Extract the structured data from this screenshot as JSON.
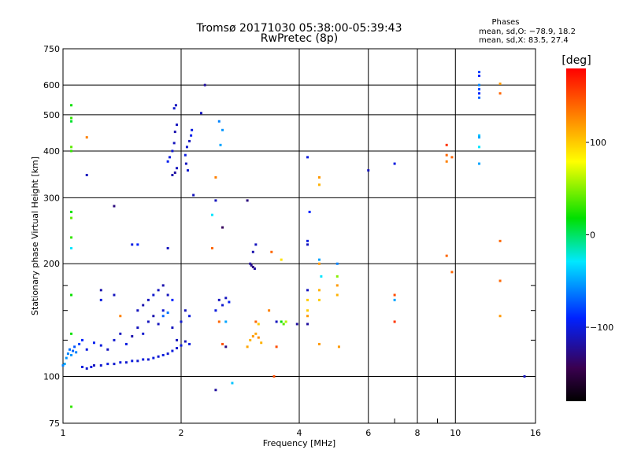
{
  "chart_data": {
    "type": "scatter",
    "title": "Tromsø 20171030 05:38:00-05:39:43",
    "subtitle": "RwPretec (8p)",
    "xlabel": "Frequency [MHz]",
    "ylabel": "Stationary phase Virtual Height [km]",
    "xscale": "log",
    "yscale": "log",
    "xlim": [
      1,
      16
    ],
    "ylim": [
      75,
      750
    ],
    "xticks": [
      1,
      2,
      4,
      6,
      8,
      10,
      16
    ],
    "xtick_labels": [
      "1",
      "2",
      "4",
      "6",
      "8",
      "10",
      "16"
    ],
    "xminor": [
      7,
      9
    ],
    "yticks": [
      75,
      100,
      200,
      300,
      400,
      500,
      600,
      750
    ],
    "ytick_labels": [
      "75",
      "100",
      "200",
      "300",
      "400",
      "500",
      "600",
      "750"
    ],
    "yminor": [
      125,
      150,
      175
    ],
    "grid": true,
    "stats": {
      "heading": "Phases",
      "line1": "mean, sd,O: −78.9, 18.2",
      "line2": "mean, sd,X:  83.5, 27.4"
    },
    "colorbar": {
      "label": "[deg]",
      "range": [
        -180,
        180
      ],
      "ticks": [
        100,
        0,
        -100
      ],
      "tick_labels": [
        "100",
        "0",
        "−100"
      ]
    },
    "series": [
      {
        "points": [
          {
            "x": 1.0,
            "y": 107,
            "p": -60
          },
          {
            "x": 1.01,
            "y": 108,
            "p": -50
          },
          {
            "x": 1.02,
            "y": 112,
            "p": -55
          },
          {
            "x": 1.03,
            "y": 115,
            "p": -60
          },
          {
            "x": 1.04,
            "y": 118,
            "p": -65
          },
          {
            "x": 1.05,
            "y": 114,
            "p": -55
          },
          {
            "x": 1.06,
            "y": 117,
            "p": -70
          },
          {
            "x": 1.07,
            "y": 120,
            "p": -75
          },
          {
            "x": 1.08,
            "y": 116,
            "p": -60
          },
          {
            "x": 1.1,
            "y": 122,
            "p": -80
          },
          {
            "x": 1.12,
            "y": 125,
            "p": -90
          },
          {
            "x": 1.15,
            "y": 118,
            "p": -100
          },
          {
            "x": 1.2,
            "y": 123,
            "p": -95
          },
          {
            "x": 1.25,
            "y": 121,
            "p": -100
          },
          {
            "x": 1.12,
            "y": 106,
            "p": -100
          },
          {
            "x": 1.15,
            "y": 105,
            "p": -105
          },
          {
            "x": 1.18,
            "y": 106,
            "p": -100
          },
          {
            "x": 1.2,
            "y": 107,
            "p": -110
          },
          {
            "x": 1.25,
            "y": 107,
            "p": -105
          },
          {
            "x": 1.3,
            "y": 108,
            "p": -100
          },
          {
            "x": 1.35,
            "y": 108,
            "p": -105
          },
          {
            "x": 1.4,
            "y": 109,
            "p": -100
          },
          {
            "x": 1.45,
            "y": 109,
            "p": -105
          },
          {
            "x": 1.5,
            "y": 110,
            "p": -100
          },
          {
            "x": 1.55,
            "y": 110,
            "p": -105
          },
          {
            "x": 1.6,
            "y": 111,
            "p": -100
          },
          {
            "x": 1.65,
            "y": 111,
            "p": -105
          },
          {
            "x": 1.7,
            "y": 112,
            "p": -100
          },
          {
            "x": 1.75,
            "y": 113,
            "p": -105
          },
          {
            "x": 1.8,
            "y": 114,
            "p": -100
          },
          {
            "x": 1.85,
            "y": 115,
            "p": -105
          },
          {
            "x": 1.9,
            "y": 117,
            "p": -100
          },
          {
            "x": 1.95,
            "y": 119,
            "p": -105
          },
          {
            "x": 2.0,
            "y": 121,
            "p": -100
          },
          {
            "x": 2.05,
            "y": 124,
            "p": -110
          },
          {
            "x": 2.1,
            "y": 122,
            "p": -100
          },
          {
            "x": 1.3,
            "y": 118,
            "p": -110
          },
          {
            "x": 1.35,
            "y": 125,
            "p": -105
          },
          {
            "x": 1.4,
            "y": 130,
            "p": -110
          },
          {
            "x": 1.45,
            "y": 122,
            "p": -100
          },
          {
            "x": 1.5,
            "y": 128,
            "p": -115
          },
          {
            "x": 1.55,
            "y": 135,
            "p": -110
          },
          {
            "x": 1.6,
            "y": 130,
            "p": -105
          },
          {
            "x": 1.65,
            "y": 140,
            "p": -110
          },
          {
            "x": 1.7,
            "y": 145,
            "p": -115
          },
          {
            "x": 1.75,
            "y": 138,
            "p": -110
          },
          {
            "x": 1.8,
            "y": 150,
            "p": -105
          },
          {
            "x": 1.55,
            "y": 150,
            "p": -110
          },
          {
            "x": 1.6,
            "y": 155,
            "p": -115
          },
          {
            "x": 1.65,
            "y": 160,
            "p": -110
          },
          {
            "x": 1.7,
            "y": 165,
            "p": -105
          },
          {
            "x": 1.75,
            "y": 170,
            "p": -110
          },
          {
            "x": 1.8,
            "y": 175,
            "p": -115
          },
          {
            "x": 1.85,
            "y": 165,
            "p": -110
          },
          {
            "x": 1.9,
            "y": 160,
            "p": -90
          },
          {
            "x": 1.8,
            "y": 145,
            "p": -70
          },
          {
            "x": 1.85,
            "y": 148,
            "p": -65
          },
          {
            "x": 1.95,
            "y": 125,
            "p": -110
          },
          {
            "x": 2.0,
            "y": 140,
            "p": -105
          },
          {
            "x": 2.05,
            "y": 150,
            "p": -110
          },
          {
            "x": 2.1,
            "y": 145,
            "p": -100
          },
          {
            "x": 1.35,
            "y": 165,
            "p": -110
          },
          {
            "x": 1.25,
            "y": 170,
            "p": -115
          },
          {
            "x": 1.9,
            "y": 135,
            "p": -110
          },
          {
            "x": 1.85,
            "y": 375,
            "p": -95
          },
          {
            "x": 1.87,
            "y": 385,
            "p": -100
          },
          {
            "x": 1.9,
            "y": 400,
            "p": -105
          },
          {
            "x": 1.92,
            "y": 420,
            "p": -110
          },
          {
            "x": 1.93,
            "y": 450,
            "p": -115
          },
          {
            "x": 1.95,
            "y": 470,
            "p": -110
          },
          {
            "x": 1.9,
            "y": 345,
            "p": -115
          },
          {
            "x": 1.93,
            "y": 350,
            "p": -120
          },
          {
            "x": 1.95,
            "y": 360,
            "p": -110
          },
          {
            "x": 1.92,
            "y": 520,
            "p": -105
          },
          {
            "x": 1.94,
            "y": 530,
            "p": -110
          },
          {
            "x": 2.05,
            "y": 390,
            "p": -100
          },
          {
            "x": 2.07,
            "y": 410,
            "p": -105
          },
          {
            "x": 2.1,
            "y": 425,
            "p": -110
          },
          {
            "x": 2.12,
            "y": 440,
            "p": -95
          },
          {
            "x": 2.13,
            "y": 455,
            "p": -100
          },
          {
            "x": 2.06,
            "y": 370,
            "p": -110
          },
          {
            "x": 2.08,
            "y": 355,
            "p": -105
          },
          {
            "x": 2.15,
            "y": 305,
            "p": -110
          },
          {
            "x": 2.3,
            "y": 600,
            "p": -120
          },
          {
            "x": 2.25,
            "y": 505,
            "p": -110
          },
          {
            "x": 2.5,
            "y": 480,
            "p": -60
          },
          {
            "x": 2.55,
            "y": 455,
            "p": -55
          },
          {
            "x": 2.52,
            "y": 415,
            "p": -50
          },
          {
            "x": 2.45,
            "y": 340,
            "p": 130
          },
          {
            "x": 2.4,
            "y": 270,
            "p": -30
          },
          {
            "x": 2.45,
            "y": 295,
            "p": -110
          },
          {
            "x": 2.55,
            "y": 250,
            "p": -140
          },
          {
            "x": 2.4,
            "y": 220,
            "p": 140
          },
          {
            "x": 2.5,
            "y": 160,
            "p": -110
          },
          {
            "x": 2.55,
            "y": 155,
            "p": -105
          },
          {
            "x": 2.6,
            "y": 162,
            "p": -110
          },
          {
            "x": 2.65,
            "y": 158,
            "p": -95
          },
          {
            "x": 2.45,
            "y": 150,
            "p": -100
          },
          {
            "x": 2.5,
            "y": 140,
            "p": 140
          },
          {
            "x": 2.6,
            "y": 140,
            "p": -50
          },
          {
            "x": 2.55,
            "y": 122,
            "p": 150
          },
          {
            "x": 2.6,
            "y": 120,
            "p": -130
          },
          {
            "x": 2.45,
            "y": 92,
            "p": -120
          },
          {
            "x": 2.7,
            "y": 96,
            "p": -40
          },
          {
            "x": 3.0,
            "y": 200,
            "p": -120
          },
          {
            "x": 3.02,
            "y": 198,
            "p": -125
          },
          {
            "x": 3.05,
            "y": 196,
            "p": -130
          },
          {
            "x": 3.08,
            "y": 194,
            "p": -120
          },
          {
            "x": 3.1,
            "y": 225,
            "p": -110
          },
          {
            "x": 3.05,
            "y": 215,
            "p": -115
          },
          {
            "x": 2.95,
            "y": 295,
            "p": -130
          },
          {
            "x": 3.0,
            "y": 125,
            "p": 110
          },
          {
            "x": 3.05,
            "y": 128,
            "p": 120
          },
          {
            "x": 3.1,
            "y": 130,
            "p": 115
          },
          {
            "x": 3.15,
            "y": 127,
            "p": 125
          },
          {
            "x": 3.2,
            "y": 123,
            "p": 110
          },
          {
            "x": 3.1,
            "y": 140,
            "p": 140
          },
          {
            "x": 3.15,
            "y": 138,
            "p": 100
          },
          {
            "x": 2.95,
            "y": 120,
            "p": 115
          },
          {
            "x": 3.35,
            "y": 150,
            "p": 130
          },
          {
            "x": 3.5,
            "y": 140,
            "p": -110
          },
          {
            "x": 3.6,
            "y": 140,
            "p": 20
          },
          {
            "x": 3.65,
            "y": 138,
            "p": 40
          },
          {
            "x": 3.7,
            "y": 140,
            "p": 60
          },
          {
            "x": 3.4,
            "y": 215,
            "p": 140
          },
          {
            "x": 3.6,
            "y": 205,
            "p": 90
          },
          {
            "x": 3.5,
            "y": 120,
            "p": 150
          },
          {
            "x": 3.45,
            "y": 100,
            "p": 150
          },
          {
            "x": 3.95,
            "y": 138,
            "p": -120
          },
          {
            "x": 4.2,
            "y": 385,
            "p": -100
          },
          {
            "x": 4.25,
            "y": 275,
            "p": -90
          },
          {
            "x": 4.2,
            "y": 230,
            "p": -100
          },
          {
            "x": 4.2,
            "y": 225,
            "p": -110
          },
          {
            "x": 4.2,
            "y": 170,
            "p": -110
          },
          {
            "x": 4.2,
            "y": 160,
            "p": 100
          },
          {
            "x": 4.2,
            "y": 150,
            "p": 100
          },
          {
            "x": 4.2,
            "y": 145,
            "p": 120
          },
          {
            "x": 4.2,
            "y": 138,
            "p": -120
          },
          {
            "x": 4.5,
            "y": 340,
            "p": 120
          },
          {
            "x": 4.5,
            "y": 325,
            "p": 110
          },
          {
            "x": 4.5,
            "y": 205,
            "p": -50
          },
          {
            "x": 4.5,
            "y": 200,
            "p": 120
          },
          {
            "x": 4.55,
            "y": 185,
            "p": -30
          },
          {
            "x": 4.5,
            "y": 170,
            "p": 110
          },
          {
            "x": 4.5,
            "y": 160,
            "p": 100
          },
          {
            "x": 4.5,
            "y": 122,
            "p": 120
          },
          {
            "x": 5.0,
            "y": 200,
            "p": -60
          },
          {
            "x": 5.0,
            "y": 185,
            "p": 50
          },
          {
            "x": 5.0,
            "y": 175,
            "p": 120
          },
          {
            "x": 5.0,
            "y": 165,
            "p": 110
          },
          {
            "x": 5.05,
            "y": 120,
            "p": 120
          },
          {
            "x": 6.0,
            "y": 355,
            "p": -110
          },
          {
            "x": 7.0,
            "y": 370,
            "p": -100
          },
          {
            "x": 7.0,
            "y": 165,
            "p": 150
          },
          {
            "x": 7.0,
            "y": 160,
            "p": -50
          },
          {
            "x": 7.0,
            "y": 140,
            "p": 160
          },
          {
            "x": 9.5,
            "y": 415,
            "p": 160
          },
          {
            "x": 9.5,
            "y": 390,
            "p": 140
          },
          {
            "x": 9.5,
            "y": 375,
            "p": 130
          },
          {
            "x": 9.8,
            "y": 385,
            "p": 140
          },
          {
            "x": 9.5,
            "y": 210,
            "p": 140
          },
          {
            "x": 9.8,
            "y": 190,
            "p": 140
          },
          {
            "x": 11.5,
            "y": 650,
            "p": -80
          },
          {
            "x": 11.5,
            "y": 635,
            "p": -90
          },
          {
            "x": 11.5,
            "y": 600,
            "p": -60
          },
          {
            "x": 11.5,
            "y": 585,
            "p": -80
          },
          {
            "x": 11.5,
            "y": 570,
            "p": -90
          },
          {
            "x": 11.5,
            "y": 555,
            "p": -70
          },
          {
            "x": 11.5,
            "y": 440,
            "p": -40
          },
          {
            "x": 11.5,
            "y": 435,
            "p": -50
          },
          {
            "x": 11.5,
            "y": 410,
            "p": -30
          },
          {
            "x": 11.5,
            "y": 370,
            "p": -50
          },
          {
            "x": 13.0,
            "y": 605,
            "p": 120
          },
          {
            "x": 13.0,
            "y": 570,
            "p": 140
          },
          {
            "x": 13.0,
            "y": 230,
            "p": 140
          },
          {
            "x": 13.0,
            "y": 180,
            "p": 140
          },
          {
            "x": 13.0,
            "y": 145,
            "p": 120
          },
          {
            "x": 15.0,
            "y": 100,
            "p": -110
          },
          {
            "x": 1.05,
            "y": 530,
            "p": 20
          },
          {
            "x": 1.05,
            "y": 490,
            "p": 30
          },
          {
            "x": 1.05,
            "y": 480,
            "p": 10
          },
          {
            "x": 1.05,
            "y": 410,
            "p": 40
          },
          {
            "x": 1.05,
            "y": 400,
            "p": 30
          },
          {
            "x": 1.05,
            "y": 275,
            "p": 20
          },
          {
            "x": 1.05,
            "y": 265,
            "p": 40
          },
          {
            "x": 1.05,
            "y": 235,
            "p": 30
          },
          {
            "x": 1.05,
            "y": 220,
            "p": -30
          },
          {
            "x": 1.05,
            "y": 165,
            "p": 20
          },
          {
            "x": 1.05,
            "y": 130,
            "p": 20
          },
          {
            "x": 1.05,
            "y": 83,
            "p": 30
          },
          {
            "x": 1.15,
            "y": 345,
            "p": -110
          },
          {
            "x": 1.25,
            "y": 160,
            "p": -100
          },
          {
            "x": 1.35,
            "y": 285,
            "p": -130
          },
          {
            "x": 1.5,
            "y": 225,
            "p": -100
          },
          {
            "x": 1.55,
            "y": 225,
            "p": -90
          },
          {
            "x": 1.85,
            "y": 220,
            "p": -110
          },
          {
            "x": 1.15,
            "y": 435,
            "p": 130
          },
          {
            "x": 1.4,
            "y": 145,
            "p": 130
          }
        ]
      }
    ]
  }
}
